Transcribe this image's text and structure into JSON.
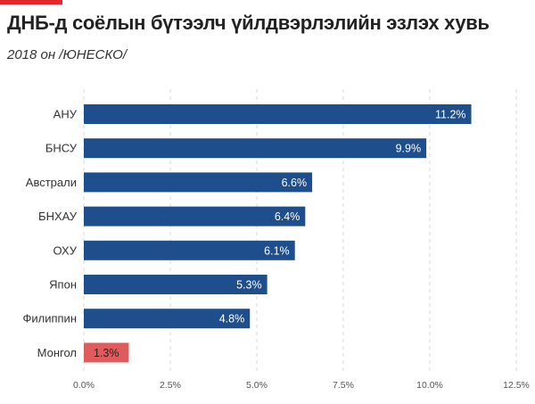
{
  "header": {
    "title": "ДНБ-д соёлын бүтээлч үйлдвэрлэлийн эзлэх хувь",
    "subtitle": "2018 он /ЮНЕСКО/"
  },
  "colors": {
    "accent": "#e0282d",
    "bar": "#1f4e8c",
    "highlight_bar": "#e05c5c"
  },
  "chart_data": {
    "type": "bar",
    "orientation": "horizontal",
    "categories": [
      "АНУ",
      "БНСУ",
      "Австрали",
      "БНХАУ",
      "ОХУ",
      "Япон",
      "Филиппин",
      "Монгол"
    ],
    "values": [
      11.2,
      9.9,
      6.6,
      6.4,
      6.1,
      5.3,
      4.8,
      1.3
    ],
    "value_labels": [
      "11.2%",
      "9.9%",
      "6.6%",
      "6.4%",
      "6.1%",
      "5.3%",
      "4.8%",
      "1.3%"
    ],
    "highlight_category": "Монгол",
    "xlim": [
      0,
      12.5
    ],
    "x_ticks": [
      0,
      2.5,
      5,
      7.5,
      10,
      12.5
    ],
    "x_tick_labels": [
      "0.0%",
      "2.5%",
      "5.0%",
      "7.5%",
      "10.0%",
      "12.5%"
    ],
    "grid": true,
    "legend": "none",
    "title": "ДНБ-д соёлын бүтээлч үйлдвэрлэлийн эзлэх хувь",
    "xlabel": "",
    "ylabel": ""
  }
}
